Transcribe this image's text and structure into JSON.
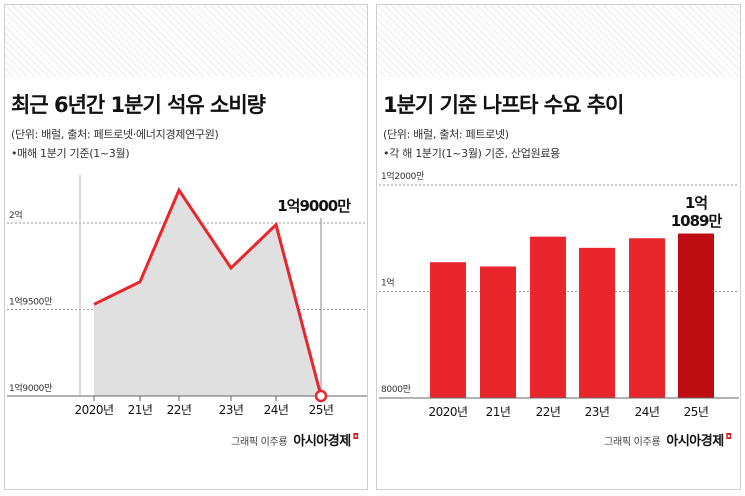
{
  "left_panel": {
    "title": "최근 6년간 1분기 석유 소비량",
    "source": "(단위: 배럴, 출처: 페트로넷·에너지경제연구원)",
    "note": "•매해 1분기 기준(1~3월)",
    "credit_artist": "그래픽 이주룡",
    "credit_brand": "아시아경제"
  },
  "right_panel": {
    "title": "1분기 기준 나프타 수요 추이",
    "source": "(단위: 배럴, 출처: 페트로넷)",
    "note": "•각 해 1분기(1~3월) 기준, 산업원료용",
    "credit_artist": "그래픽 이주룡",
    "credit_brand": "아시아경제"
  },
  "chart_data": [
    {
      "type": "area",
      "title": "최근 6년간 1분기 석유 소비량",
      "categories": [
        "2020년",
        "21년",
        "22년",
        "23년",
        "24년",
        "25년"
      ],
      "values": [
        195300000,
        196600000,
        201900000,
        197400000,
        199900000,
        190000000
      ],
      "ylim": [
        190000000,
        202000000
      ],
      "yticks": [
        {
          "value": 200000000,
          "label": "2억"
        },
        {
          "value": 195000000,
          "label": "1억9500만"
        },
        {
          "value": 190000000,
          "label": "1억9000만"
        }
      ],
      "annotation": {
        "index": 5,
        "text": "1억9000만"
      },
      "grid": "dashed",
      "colors": {
        "line": "#e8262c",
        "fill": "#e0e0e0",
        "marker_fill": "#ffffff"
      }
    },
    {
      "type": "bar",
      "title": "1분기 기준 나프타 수요 추이",
      "categories": [
        "2020년",
        "21년",
        "22년",
        "23년",
        "24년",
        "25년"
      ],
      "values": [
        105500000,
        104700000,
        110300000,
        108200000,
        110000000,
        110890000
      ],
      "ylim": [
        80000000,
        120000000
      ],
      "yticks": [
        {
          "value": 120000000,
          "label": "1억2000만"
        },
        {
          "value": 100000000,
          "label": "1억"
        },
        {
          "value": 80000000,
          "label": "8000만"
        }
      ],
      "annotation": {
        "index": 5,
        "lines": [
          "1억",
          "1089만"
        ]
      },
      "grid": "dashed",
      "colors": {
        "bar": "#e8262c",
        "highlight": "#c00d14"
      }
    }
  ]
}
